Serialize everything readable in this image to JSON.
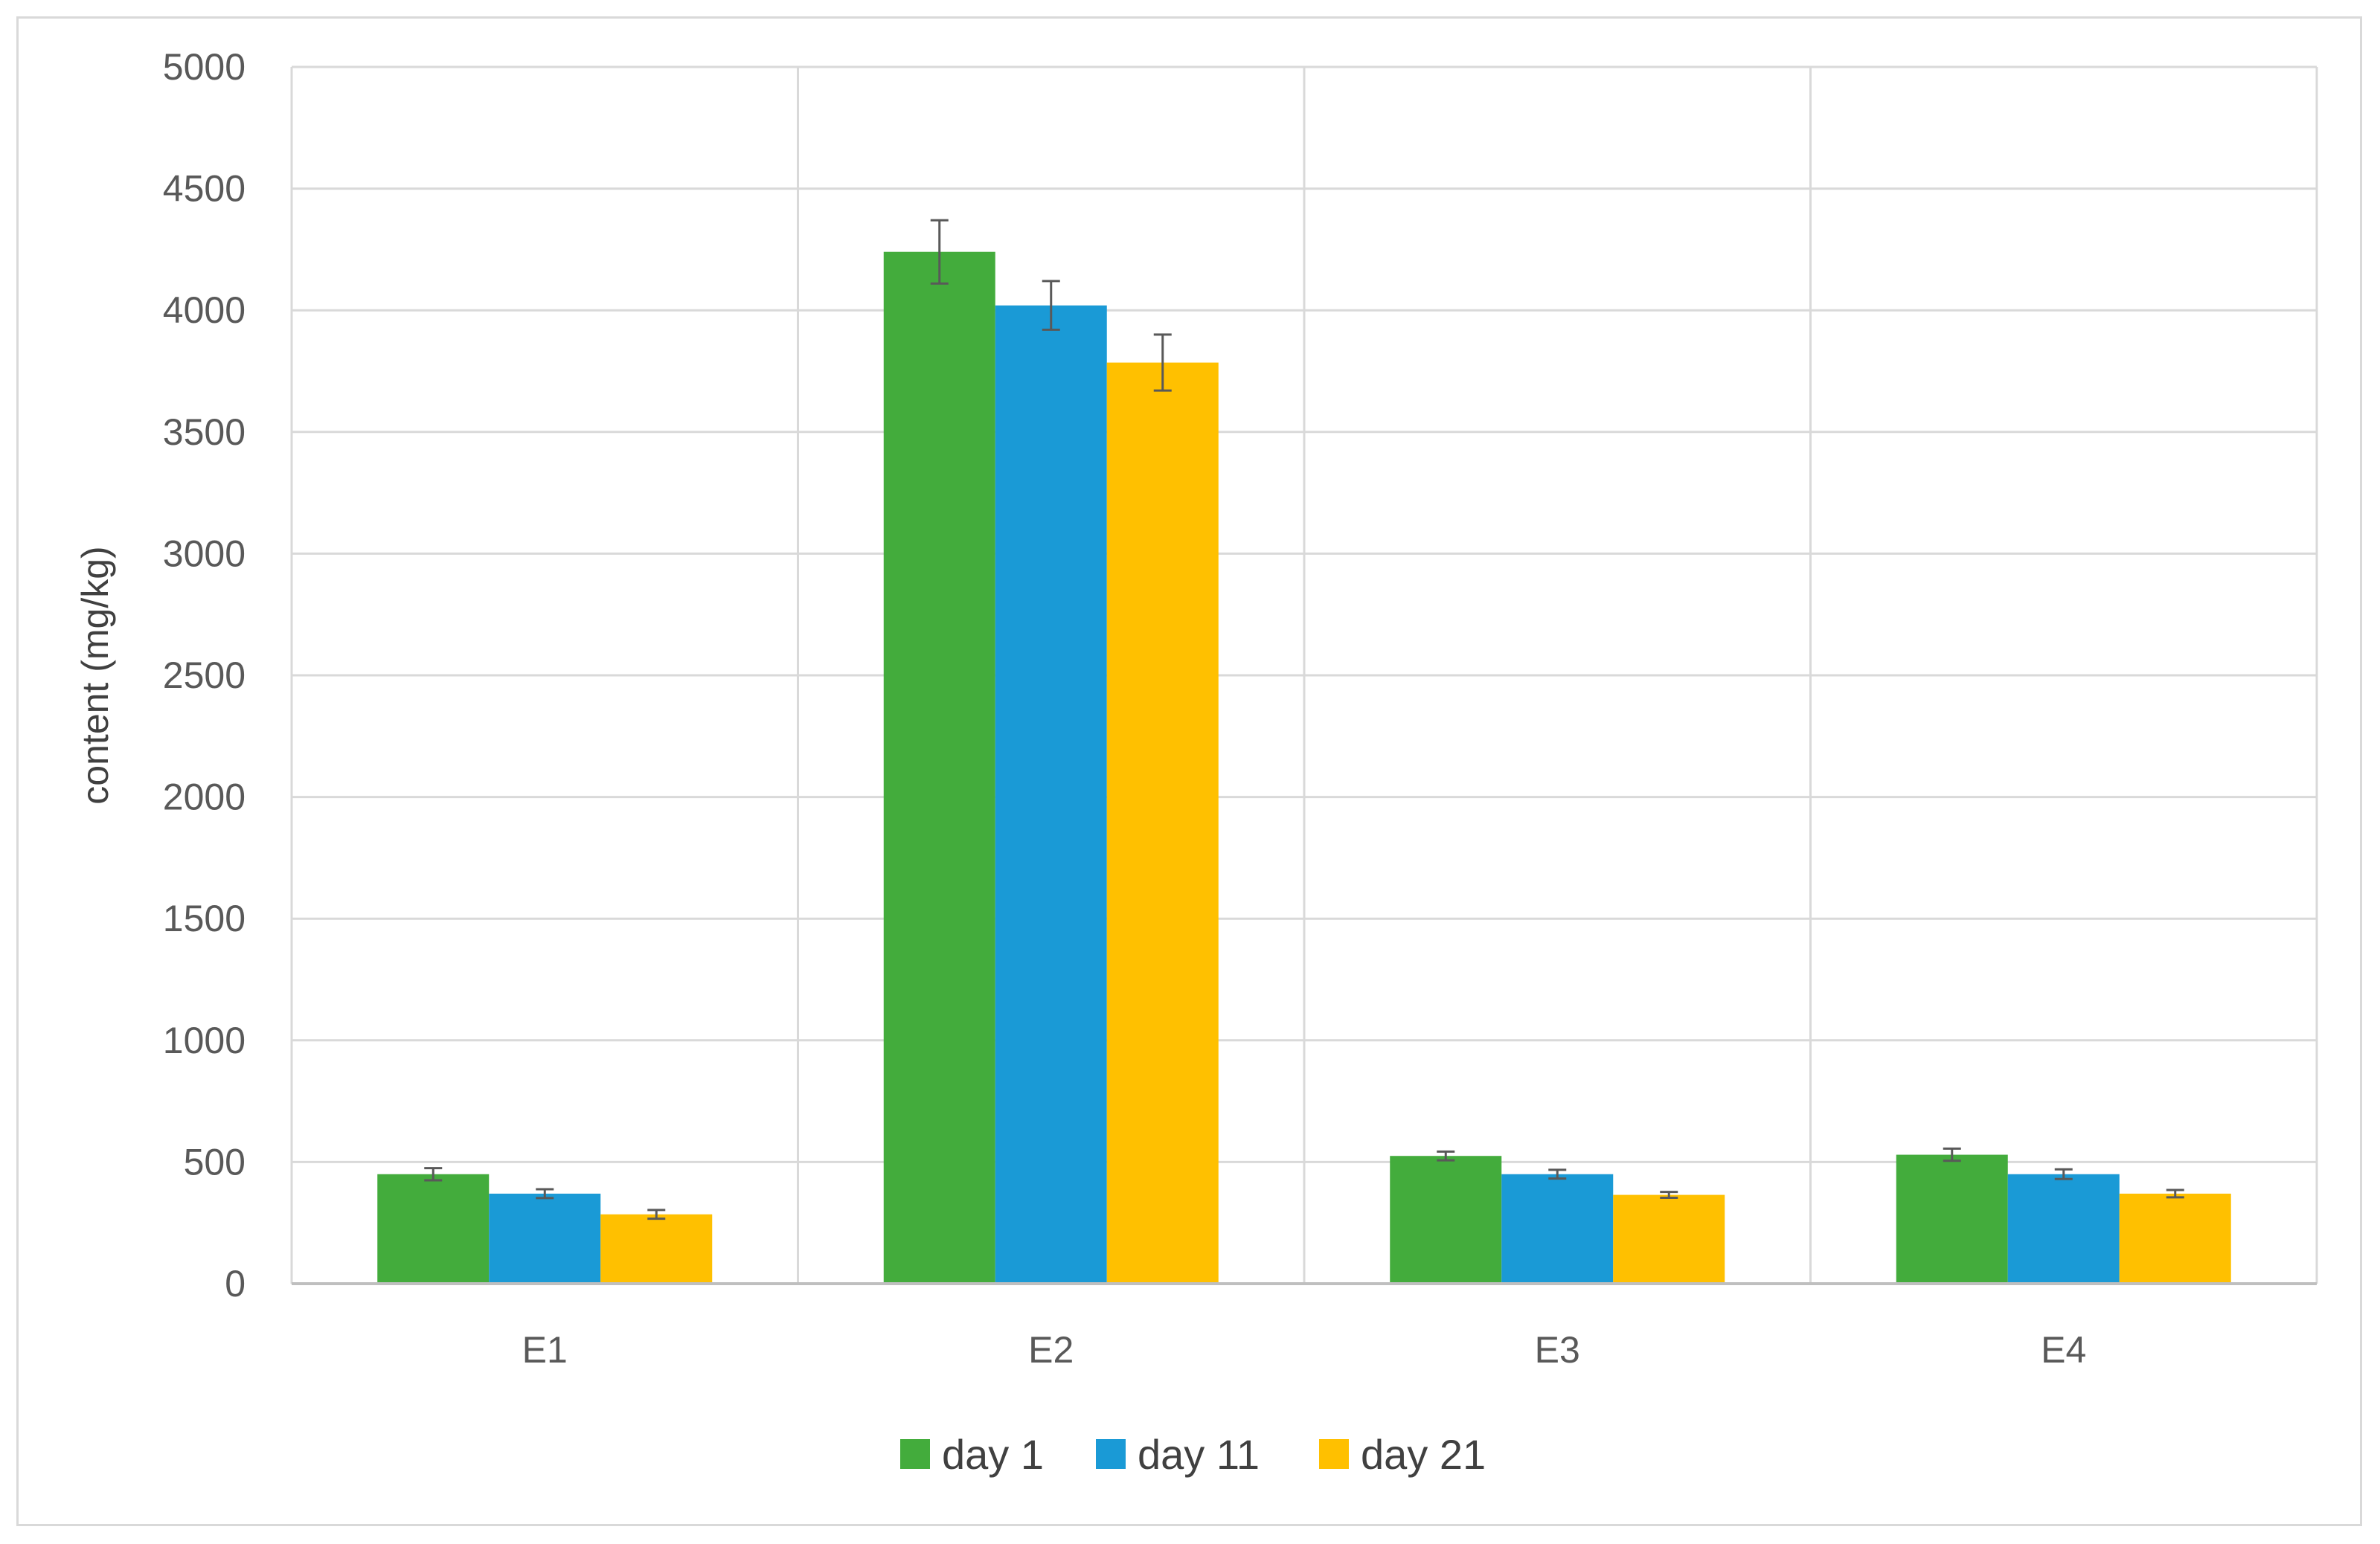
{
  "chart_data": {
    "type": "bar",
    "title": "",
    "xlabel": "",
    "ylabel": "content (mg/kg)",
    "categories": [
      "E1",
      "E2",
      "E3",
      "E4"
    ],
    "ylim": [
      0,
      5000
    ],
    "yticks": [
      0,
      500,
      1000,
      1500,
      2000,
      2500,
      3000,
      3500,
      4000,
      4500,
      5000
    ],
    "grid": "on",
    "legend_position": "bottom",
    "series": [
      {
        "name": "day 1",
        "color": "#43ac3c",
        "values": [
          450,
          4240,
          525,
          530
        ],
        "errors": [
          25,
          130,
          18,
          25
        ]
      },
      {
        "name": "day 11",
        "color": "#1a9ad6",
        "values": [
          370,
          4020,
          450,
          450
        ],
        "errors": [
          18,
          100,
          18,
          20
        ]
      },
      {
        "name": "day 21",
        "color": "#ffc000",
        "values": [
          285,
          3785,
          365,
          370
        ],
        "errors": [
          18,
          115,
          12,
          15
        ]
      }
    ]
  }
}
